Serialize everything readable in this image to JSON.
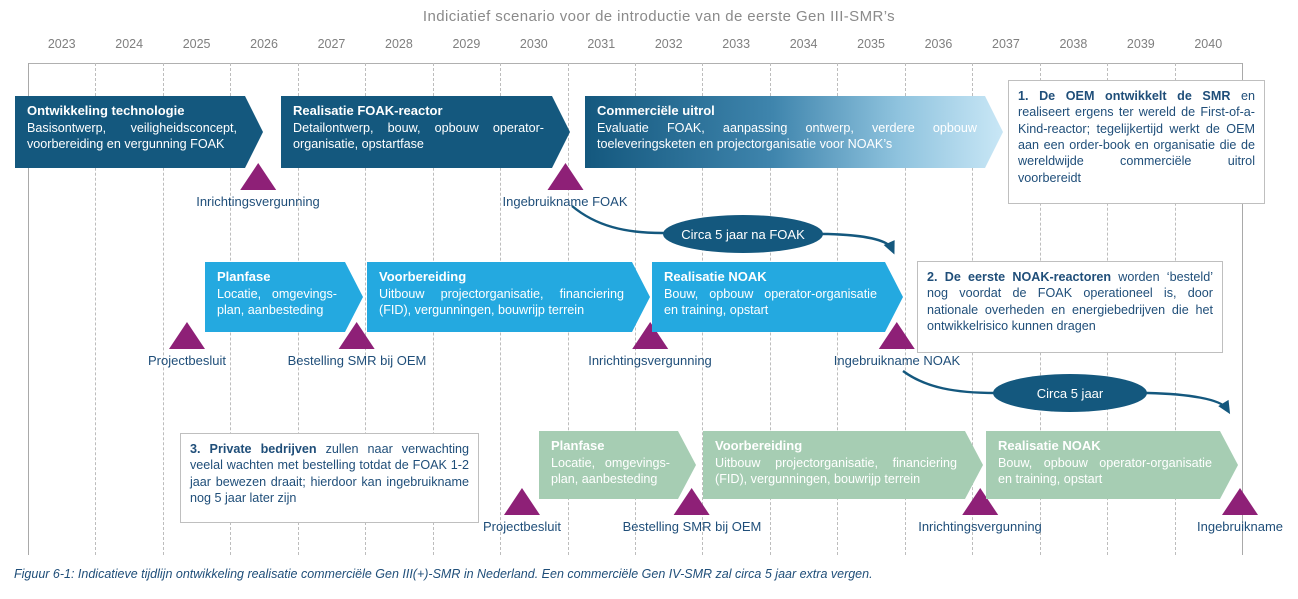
{
  "title": "Indiciatief scenario voor de introductie van de eerste Gen III-SMR’s",
  "years": [
    "2023",
    "2024",
    "2025",
    "2026",
    "2027",
    "2028",
    "2029",
    "2030",
    "2031",
    "2032",
    "2033",
    "2034",
    "2035",
    "2036",
    "2037",
    "2038",
    "2039",
    "2040"
  ],
  "phases": {
    "row1": [
      {
        "title": "Ontwikkeling technologie",
        "desc": "Basisontwerp, veiligheidsconcept, voorbereiding en vergunning FOAK"
      },
      {
        "title": "Realisatie FOAK-reactor",
        "desc": "Detailontwerp, bouw, opbouw operator-organisatie, opstartfase"
      },
      {
        "title": "Commerciële uitrol",
        "desc": "Evaluatie FOAK, aanpassing ontwerp, verdere opbouw toeleveringsketen en projectorganisatie voor NOAK’s"
      }
    ],
    "row2": [
      {
        "title": "Planfase",
        "desc": "Locatie, omgevings-plan, aanbesteding"
      },
      {
        "title": "Voorbereiding",
        "desc": "Uitbouw projectorganisatie, financiering (FID), vergunningen, bouwrijp terrein"
      },
      {
        "title": "Realisatie NOAK",
        "desc": "Bouw, opbouw operator-organisatie en training, opstart"
      }
    ],
    "row3": [
      {
        "title": "Planfase",
        "desc": "Locatie, omgevings-plan, aanbesteding"
      },
      {
        "title": "Voorbereiding",
        "desc": "Uitbouw projectorganisatie, financiering (FID), vergunningen, bouwrijp terrein"
      },
      {
        "title": "Realisatie NOAK",
        "desc": "Bouw, opbouw operator-organisatie en training, opstart"
      }
    ]
  },
  "milestones": {
    "row1": [
      "Inrichtingsvergunning",
      "Ingebruikname FOAK"
    ],
    "row2": [
      "Projectbesluit",
      "Bestelling SMR bij OEM",
      "Inrichtingsvergunning",
      "Ingebruikname NOAK"
    ],
    "row3": [
      "Projectbesluit",
      "Bestelling SMR bij OEM",
      "Inrichtingsvergunning",
      "Ingebruikname"
    ]
  },
  "connectors": [
    {
      "label": "Circa 5 jaar na FOAK"
    },
    {
      "label": "Circa 5 jaar"
    }
  ],
  "callouts": [
    {
      "bold": "1. De OEM ontwikkelt de SMR",
      "rest": " en realiseert ergens ter wereld de First-of-a-Kind-reactor; tegelijkertijd werkt de OEM aan een order-book en organisatie die de wereldwijde commerciële uitrol voorbereidt"
    },
    {
      "bold": "2. De eerste NOAK-reactoren",
      "rest": " worden ‘besteld’ nog voordat de FOAK operationeel is, door nationale overheden en energiebedrijven die het ontwikkelrisico kunnen dragen"
    },
    {
      "bold": "3. Private bedrijven",
      "rest": " zullen naar verwachting veelal wachten met bestelling totdat de FOAK 1-2 jaar bewezen draait; hierdoor kan ingebruikname nog 5 jaar later zijn"
    }
  ],
  "caption": "Figuur 6-1: Indicatieve tijdlijn ontwikkeling realisatie commerciële Gen III(+)-SMR in Nederland. Een commerciële Gen IV-SMR zal circa 5 jaar extra vergen.",
  "colors": {
    "dark_teal": "#14587e",
    "cyan": "#24a9e0",
    "sage_green": "#a6cdb3",
    "milestone_purple": "#8e2077",
    "text_navy": "#1f4e79",
    "gradient_light_end": "#c9e7f6"
  }
}
